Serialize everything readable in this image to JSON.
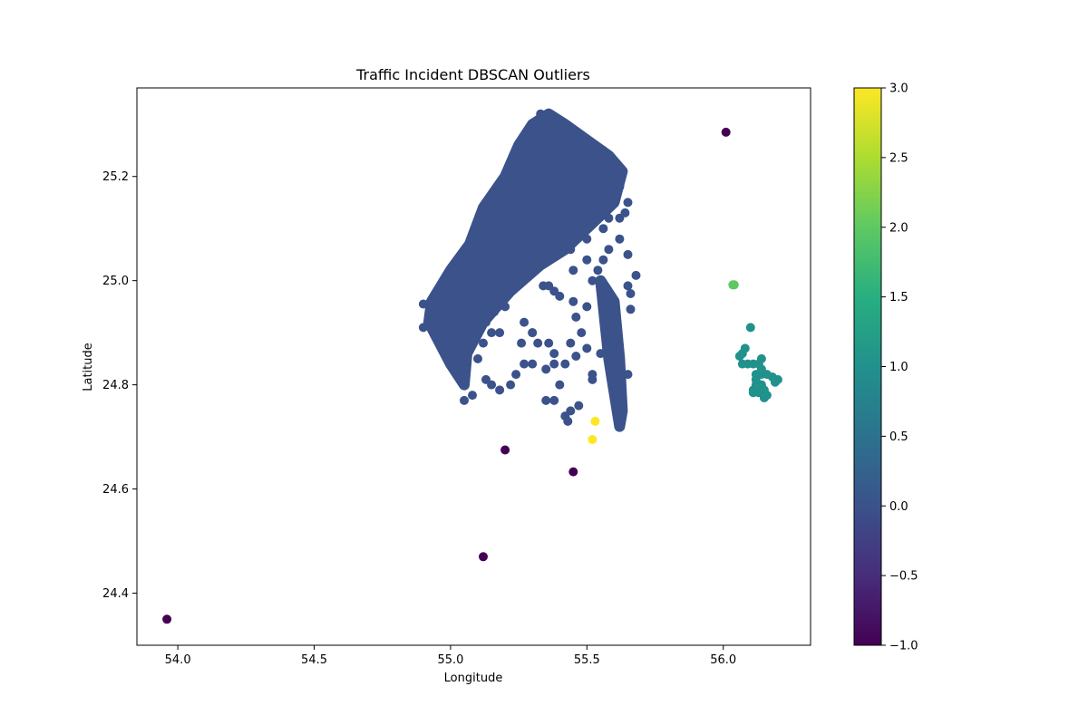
{
  "chart_data": {
    "type": "scatter",
    "title": "Traffic Incident DBSCAN Outliers",
    "xlabel": "Longitude",
    "ylabel": "Latitude",
    "xlim": [
      53.85,
      56.32
    ],
    "ylim": [
      24.3,
      25.37
    ],
    "xticks": [
      "54.0",
      "54.5",
      "55.0",
      "55.5",
      "56.0"
    ],
    "yticks": [
      "24.4",
      "24.6",
      "24.8",
      "25.0",
      "25.2"
    ],
    "grid": false,
    "colorbar": {
      "min": -1.0,
      "max": 3.0,
      "ticks": [
        "−1.0",
        "−0.5",
        "0.0",
        "0.5",
        "1.0",
        "1.5",
        "2.0",
        "2.5",
        "3.0"
      ],
      "colormap": "viridis"
    },
    "colors": {
      "-1": "#440154",
      "0": "#3b528b",
      "1": "#21918c",
      "2": "#5ec962",
      "3": "#fde725"
    },
    "clusters": [
      {
        "label": -1,
        "points": [
          [
            53.96,
            24.35
          ],
          [
            55.12,
            24.47
          ],
          [
            55.2,
            24.675
          ],
          [
            55.45,
            24.633
          ],
          [
            56.01,
            25.285
          ]
        ]
      },
      {
        "label": 3,
        "points": [
          [
            55.53,
            24.73
          ],
          [
            55.52,
            24.695
          ]
        ]
      },
      {
        "label": 2,
        "points": [
          [
            56.04,
            24.992
          ],
          [
            56.035,
            24.992
          ]
        ]
      },
      {
        "label": 1,
        "points": [
          [
            56.1,
            24.91
          ],
          [
            56.08,
            24.87
          ],
          [
            56.07,
            24.86
          ],
          [
            56.06,
            24.855
          ],
          [
            56.07,
            24.84
          ],
          [
            56.09,
            24.84
          ],
          [
            56.11,
            24.84
          ],
          [
            56.13,
            24.84
          ],
          [
            56.14,
            24.85
          ],
          [
            56.14,
            24.83
          ],
          [
            56.12,
            24.82
          ],
          [
            56.14,
            24.82
          ],
          [
            56.16,
            24.82
          ],
          [
            56.18,
            24.815
          ],
          [
            56.2,
            24.81
          ],
          [
            56.19,
            24.805
          ],
          [
            56.12,
            24.8
          ],
          [
            56.14,
            24.8
          ],
          [
            56.11,
            24.79
          ],
          [
            56.13,
            24.785
          ],
          [
            56.15,
            24.79
          ],
          [
            56.16,
            24.78
          ],
          [
            56.15,
            24.775
          ],
          [
            56.11,
            24.785
          ],
          [
            56.12,
            24.81
          ]
        ]
      },
      {
        "label": 0,
        "regions": [
          [
            [
              55.36,
              25.32
            ],
            [
              55.42,
              25.3
            ],
            [
              55.5,
              25.27
            ],
            [
              55.58,
              25.24
            ],
            [
              55.63,
              25.21
            ],
            [
              55.6,
              25.15
            ],
            [
              55.5,
              25.1
            ],
            [
              55.42,
              25.06
            ],
            [
              55.33,
              25.03
            ],
            [
              55.22,
              24.98
            ],
            [
              55.12,
              24.92
            ],
            [
              55.06,
              24.86
            ],
            [
              55.05,
              24.8
            ],
            [
              55.0,
              24.84
            ],
            [
              54.96,
              24.88
            ],
            [
              54.92,
              24.92
            ],
            [
              54.93,
              24.96
            ],
            [
              55.0,
              25.02
            ],
            [
              55.07,
              25.07
            ],
            [
              55.12,
              25.14
            ],
            [
              55.2,
              25.2
            ],
            [
              55.25,
              25.26
            ],
            [
              55.3,
              25.3
            ]
          ],
          [
            [
              55.55,
              25.0
            ],
            [
              55.6,
              24.96
            ],
            [
              55.62,
              24.85
            ],
            [
              55.63,
              24.75
            ],
            [
              55.62,
              24.72
            ],
            [
              55.58,
              24.85
            ],
            [
              55.56,
              24.95
            ]
          ]
        ],
        "points": [
          [
            55.33,
            25.32
          ],
          [
            55.35,
            25.3
          ],
          [
            55.4,
            25.28
          ],
          [
            55.48,
            25.26
          ],
          [
            55.56,
            25.25
          ],
          [
            55.62,
            25.2
          ],
          [
            55.65,
            25.15
          ],
          [
            55.62,
            25.12
          ],
          [
            55.58,
            25.12
          ],
          [
            55.62,
            25.08
          ],
          [
            55.65,
            25.05
          ],
          [
            55.68,
            25.01
          ],
          [
            55.65,
            24.99
          ],
          [
            55.66,
            24.975
          ],
          [
            55.58,
            24.945
          ],
          [
            55.6,
            24.935
          ],
          [
            55.66,
            24.945
          ],
          [
            55.57,
            24.9
          ],
          [
            55.6,
            24.88
          ],
          [
            55.65,
            24.82
          ],
          [
            55.6,
            24.82
          ],
          [
            55.52,
            24.82
          ],
          [
            55.55,
            24.86
          ],
          [
            55.5,
            24.87
          ],
          [
            55.44,
            24.88
          ],
          [
            55.42,
            24.84
          ],
          [
            55.46,
            24.855
          ],
          [
            55.38,
            24.84
          ],
          [
            55.35,
            24.83
          ],
          [
            55.3,
            24.84
          ],
          [
            55.27,
            24.84
          ],
          [
            55.24,
            24.82
          ],
          [
            55.22,
            24.8
          ],
          [
            55.18,
            24.79
          ],
          [
            55.15,
            24.8
          ],
          [
            55.13,
            24.81
          ],
          [
            55.08,
            24.78
          ],
          [
            55.05,
            24.77
          ],
          [
            55.05,
            24.83
          ],
          [
            55.02,
            24.86
          ],
          [
            55.0,
            24.855
          ],
          [
            54.98,
            24.9
          ],
          [
            54.94,
            24.905
          ],
          [
            54.9,
            24.91
          ],
          [
            54.9,
            24.955
          ],
          [
            54.95,
            24.93
          ],
          [
            55.0,
            24.99
          ],
          [
            55.02,
            25.02
          ],
          [
            55.1,
            25.05
          ],
          [
            55.15,
            25.1
          ],
          [
            55.2,
            25.12
          ],
          [
            55.22,
            25.15
          ],
          [
            55.25,
            25.2
          ],
          [
            55.26,
            25.25
          ],
          [
            55.28,
            25.28
          ],
          [
            55.38,
            24.77
          ],
          [
            55.4,
            24.8
          ],
          [
            55.35,
            24.77
          ],
          [
            55.44,
            24.75
          ],
          [
            55.47,
            24.76
          ],
          [
            55.42,
            24.74
          ],
          [
            55.43,
            24.73
          ],
          [
            55.52,
            24.81
          ],
          [
            55.38,
            24.86
          ],
          [
            55.36,
            24.88
          ],
          [
            55.32,
            24.88
          ],
          [
            55.3,
            24.9
          ],
          [
            55.27,
            24.92
          ],
          [
            55.26,
            24.88
          ],
          [
            55.3,
            24.9
          ],
          [
            55.46,
            24.93
          ],
          [
            55.48,
            24.9
          ],
          [
            55.5,
            24.95
          ],
          [
            55.45,
            24.96
          ],
          [
            55.4,
            24.97
          ],
          [
            55.38,
            24.98
          ],
          [
            55.36,
            24.99
          ],
          [
            55.34,
            24.99
          ],
          [
            55.52,
            25.0
          ],
          [
            55.54,
            25.02
          ],
          [
            55.56,
            25.04
          ],
          [
            55.58,
            25.06
          ],
          [
            55.5,
            25.04
          ],
          [
            55.45,
            25.02
          ],
          [
            55.44,
            25.06
          ],
          [
            55.45,
            25.1
          ],
          [
            55.5,
            25.08
          ],
          [
            55.56,
            25.1
          ],
          [
            55.58,
            25.14
          ],
          [
            55.6,
            25.16
          ],
          [
            55.62,
            25.18
          ],
          [
            55.64,
            25.13
          ],
          [
            55.2,
            24.95
          ],
          [
            55.16,
            24.94
          ],
          [
            55.13,
            24.92
          ],
          [
            55.1,
            24.91
          ],
          [
            55.08,
            24.9
          ],
          [
            55.06,
            24.88
          ],
          [
            55.04,
            24.87
          ],
          [
            55.1,
            24.85
          ],
          [
            55.12,
            24.88
          ],
          [
            55.15,
            24.9
          ],
          [
            55.18,
            24.9
          ]
        ]
      }
    ]
  }
}
